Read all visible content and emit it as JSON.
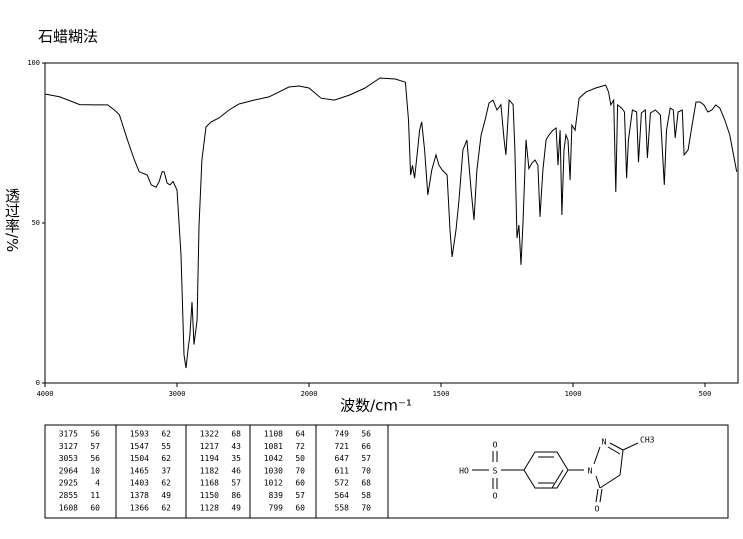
{
  "chart_data": {
    "type": "line",
    "title": "石蜡糊法",
    "x_label": "波数/cm⁻¹",
    "y_label": "透过率/%",
    "xlim": [
      4000,
      375
    ],
    "xticks": [
      4000,
      3000,
      2000,
      1500,
      1000,
      500
    ],
    "ylim": [
      0,
      100
    ],
    "yticks": [
      0,
      50,
      100
    ],
    "color": "#000000",
    "x": [
      4000,
      3887,
      3737,
      3624,
      3526,
      3474,
      3436,
      3376,
      3323,
      3286,
      3226,
      3195,
      3158,
      3135,
      3113,
      3098,
      3075,
      3053,
      3030,
      3000,
      2970,
      2947,
      2932,
      2917,
      2902,
      2886,
      2871,
      2848,
      2833,
      2811,
      2780,
      2742,
      2682,
      2606,
      2530,
      2417,
      2303,
      2152,
      2076,
      2000,
      1954,
      1904,
      1846,
      1788,
      1731,
      1673,
      1635,
      1623,
      1615,
      1608,
      1600,
      1588,
      1581,
      1573,
      1562,
      1550,
      1535,
      1519,
      1508,
      1496,
      1477,
      1466,
      1458,
      1443,
      1432,
      1417,
      1402,
      1386,
      1375,
      1364,
      1348,
      1333,
      1318,
      1303,
      1288,
      1273,
      1261,
      1254,
      1242,
      1227,
      1220,
      1212,
      1205,
      1197,
      1189,
      1178,
      1167,
      1155,
      1144,
      1133,
      1125,
      1114,
      1102,
      1091,
      1076,
      1064,
      1057,
      1049,
      1042,
      1034,
      1027,
      1019,
      1011,
      1004,
      992,
      977,
      951,
      914,
      876,
      865,
      857,
      846,
      838,
      831,
      816,
      805,
      797,
      790,
      775,
      759,
      752,
      741,
      726,
      718,
      707,
      688,
      669,
      654,
      646,
      632,
      620,
      613,
      602,
      586,
      579,
      564,
      549,
      534,
      519,
      504,
      489,
      474,
      459,
      444,
      425,
      406,
      380
    ],
    "values": [
      90.3,
      89.4,
      87,
      86.9,
      86.9,
      85.3,
      83.8,
      76,
      69.7,
      66,
      65,
      61.9,
      61.2,
      63,
      66,
      66,
      62.5,
      61.9,
      63,
      60.3,
      40,
      8.8,
      4.7,
      10.3,
      15,
      25.3,
      12,
      19.7,
      49,
      69.7,
      80,
      81.6,
      82.8,
      85.3,
      87.2,
      88.4,
      89.4,
      92.5,
      92.8,
      92.2,
      89,
      88.4,
      90,
      92.2,
      95.3,
      95,
      94,
      82.2,
      65,
      68,
      64,
      73.4,
      79,
      81.6,
      72.8,
      58.8,
      66.6,
      71.3,
      68.1,
      66.6,
      65,
      47.8,
      39.4,
      47.8,
      57.2,
      72.8,
      75.9,
      60.3,
      50.9,
      66.6,
      77.5,
      82.2,
      87.5,
      88.4,
      85.3,
      87,
      76,
      71.3,
      88.4,
      87,
      72.8,
      45.3,
      49.4,
      36.9,
      50.9,
      76,
      67,
      68.8,
      69.7,
      68.1,
      51.9,
      66.6,
      76,
      77.5,
      79,
      79.7,
      68.1,
      79,
      52.5,
      72.8,
      77.5,
      75.9,
      63.4,
      80.6,
      79,
      89,
      90.9,
      92.2,
      93.1,
      90.9,
      86.9,
      88.4,
      59.7,
      86.9,
      85.9,
      84.7,
      64,
      75.9,
      85.3,
      84.7,
      69,
      84.4,
      85.3,
      70.3,
      84.4,
      85.3,
      83.8,
      61.9,
      79,
      85.9,
      85.3,
      76.6,
      84.7,
      85.3,
      71.3,
      72.8,
      80.6,
      87.8,
      87.8,
      86.9,
      84.7,
      85.3,
      86.9,
      85.9,
      82.2,
      77.5,
      66
    ]
  },
  "peak_table": [
    [
      [
        3175,
        56
      ],
      [
        3127,
        57
      ],
      [
        3053,
        56
      ],
      [
        2964,
        10
      ],
      [
        2925,
        4
      ],
      [
        2855,
        11
      ],
      [
        1608,
        60
      ]
    ],
    [
      [
        1593,
        62
      ],
      [
        1547,
        55
      ],
      [
        1504,
        62
      ],
      [
        1465,
        37
      ],
      [
        1403,
        62
      ],
      [
        1378,
        49
      ],
      [
        1366,
        62
      ]
    ],
    [
      [
        1322,
        68
      ],
      [
        1217,
        43
      ],
      [
        1194,
        35
      ],
      [
        1182,
        46
      ],
      [
        1168,
        57
      ],
      [
        1150,
        86
      ],
      [
        1128,
        49
      ]
    ],
    [
      [
        1108,
        64
      ],
      [
        1081,
        72
      ],
      [
        1042,
        50
      ],
      [
        1030,
        70
      ],
      [
        1012,
        60
      ],
      [
        839,
        57
      ],
      [
        799,
        60
      ]
    ],
    [
      [
        749,
        56
      ],
      [
        721,
        66
      ],
      [
        647,
        57
      ],
      [
        611,
        70
      ],
      [
        572,
        68
      ],
      [
        564,
        58
      ],
      [
        558,
        70
      ]
    ]
  ],
  "structure": {
    "labels": [
      "HO",
      "S",
      "O",
      "O",
      "N",
      "N",
      "CH3",
      "O"
    ]
  }
}
